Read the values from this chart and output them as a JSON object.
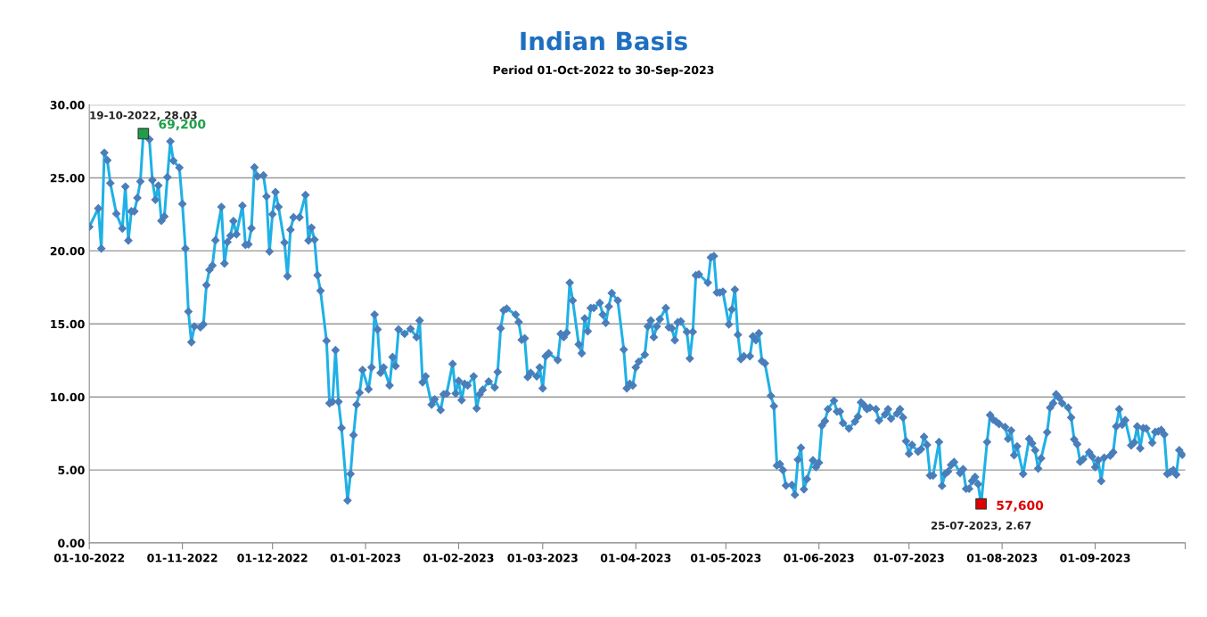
{
  "chart_data": {
    "type": "line",
    "title": "Indian Basis",
    "subtitle": "Period 01-Oct-2022 to 30-Sep-2023",
    "series": [
      {
        "color": "#1fb1e6",
        "marker": "diamond",
        "x": [
          "2022-10-01",
          "2022-10-04",
          "2022-10-05",
          "2022-10-06",
          "2022-10-07",
          "2022-10-08",
          "2022-10-10",
          "2022-10-12",
          "2022-10-13",
          "2022-10-14",
          "2022-10-15",
          "2022-10-16",
          "2022-10-17",
          "2022-10-18",
          "2022-10-19",
          "2022-10-21",
          "2022-10-22",
          "2022-10-23",
          "2022-10-24",
          "2022-10-25",
          "2022-10-26",
          "2022-10-27",
          "2022-10-28",
          "2022-10-29",
          "2022-10-31",
          "2022-11-01",
          "2022-11-02",
          "2022-11-03",
          "2022-11-04",
          "2022-11-05",
          "2022-11-07",
          "2022-11-08",
          "2022-11-09",
          "2022-11-10",
          "2022-11-11",
          "2022-11-12",
          "2022-11-14",
          "2022-11-15",
          "2022-11-16",
          "2022-11-17",
          "2022-11-18",
          "2022-11-19",
          "2022-11-21",
          "2022-11-22",
          "2022-11-23",
          "2022-11-24",
          "2022-11-25",
          "2022-11-26",
          "2022-11-28",
          "2022-11-29",
          "2022-11-30",
          "2022-12-01",
          "2022-12-02",
          "2022-12-03",
          "2022-12-05",
          "2022-12-06",
          "2022-12-07",
          "2022-12-08",
          "2022-12-10",
          "2022-12-12",
          "2022-12-13",
          "2022-12-14",
          "2022-12-15",
          "2022-12-16",
          "2022-12-17",
          "2022-12-19",
          "2022-12-20",
          "2022-12-21",
          "2022-12-22",
          "2022-12-23",
          "2022-12-24",
          "2022-12-26",
          "2022-12-27",
          "2022-12-28",
          "2022-12-29",
          "2022-12-30",
          "2022-12-31",
          "2023-01-02",
          "2023-01-03",
          "2023-01-04",
          "2023-01-05",
          "2023-01-06",
          "2023-01-07",
          "2023-01-09",
          "2023-01-10",
          "2023-01-11",
          "2023-01-12",
          "2023-01-14",
          "2023-01-16",
          "2023-01-18",
          "2023-01-19",
          "2023-01-20",
          "2023-01-21",
          "2023-01-23",
          "2023-01-24",
          "2023-01-26",
          "2023-01-27",
          "2023-01-28",
          "2023-01-30",
          "2023-01-31",
          "2023-02-01",
          "2023-02-02",
          "2023-02-03",
          "2023-02-04",
          "2023-02-06",
          "2023-02-07",
          "2023-02-08",
          "2023-02-09",
          "2023-02-11",
          "2023-02-13",
          "2023-02-14",
          "2023-02-15",
          "2023-02-16",
          "2023-02-17",
          "2023-02-20",
          "2023-02-21",
          "2023-02-22",
          "2023-02-23",
          "2023-02-24",
          "2023-02-25",
          "2023-02-27",
          "2023-02-28",
          "2023-03-01",
          "2023-03-02",
          "2023-03-03",
          "2023-03-06",
          "2023-03-07",
          "2023-03-08",
          "2023-03-09",
          "2023-03-10",
          "2023-03-11",
          "2023-03-13",
          "2023-03-14",
          "2023-03-15",
          "2023-03-16",
          "2023-03-17",
          "2023-03-18",
          "2023-03-20",
          "2023-03-21",
          "2023-03-22",
          "2023-03-23",
          "2023-03-24",
          "2023-03-26",
          "2023-03-28",
          "2023-03-29",
          "2023-03-30",
          "2023-03-31",
          "2023-04-01",
          "2023-04-02",
          "2023-04-04",
          "2023-04-05",
          "2023-04-06",
          "2023-04-07",
          "2023-04-08",
          "2023-04-09",
          "2023-04-11",
          "2023-04-12",
          "2023-04-13",
          "2023-04-14",
          "2023-04-15",
          "2023-04-16",
          "2023-04-18",
          "2023-04-19",
          "2023-04-20",
          "2023-04-21",
          "2023-04-22",
          "2023-04-25",
          "2023-04-26",
          "2023-04-27",
          "2023-04-28",
          "2023-04-29",
          "2023-04-30",
          "2023-05-02",
          "2023-05-03",
          "2023-05-04",
          "2023-05-05",
          "2023-05-06",
          "2023-05-07",
          "2023-05-09",
          "2023-05-10",
          "2023-05-11",
          "2023-05-12",
          "2023-05-13",
          "2023-05-14",
          "2023-05-16",
          "2023-05-17",
          "2023-05-18",
          "2023-05-19",
          "2023-05-20",
          "2023-05-21",
          "2023-05-23",
          "2023-05-24",
          "2023-05-25",
          "2023-05-26",
          "2023-05-27",
          "2023-05-28",
          "2023-05-30",
          "2023-05-31",
          "2023-06-01",
          "2023-06-02",
          "2023-06-03",
          "2023-06-04",
          "2023-06-06",
          "2023-06-07",
          "2023-06-08",
          "2023-06-09",
          "2023-06-11",
          "2023-06-13",
          "2023-06-14",
          "2023-06-15",
          "2023-06-16",
          "2023-06-17",
          "2023-06-18",
          "2023-06-20",
          "2023-06-21",
          "2023-06-23",
          "2023-06-24",
          "2023-06-25",
          "2023-06-27",
          "2023-06-28",
          "2023-06-29",
          "2023-06-30",
          "2023-07-01",
          "2023-07-02",
          "2023-07-04",
          "2023-07-05",
          "2023-07-06",
          "2023-07-07",
          "2023-07-08",
          "2023-07-09",
          "2023-07-11",
          "2023-07-12",
          "2023-07-13",
          "2023-07-14",
          "2023-07-15",
          "2023-07-16",
          "2023-07-18",
          "2023-07-19",
          "2023-07-20",
          "2023-07-21",
          "2023-07-22",
          "2023-07-23",
          "2023-07-24",
          "2023-07-25",
          "2023-07-27",
          "2023-07-28",
          "2023-07-29",
          "2023-07-30",
          "2023-07-31",
          "2023-08-02",
          "2023-08-03",
          "2023-08-04",
          "2023-08-05",
          "2023-08-06",
          "2023-08-08",
          "2023-08-10",
          "2023-08-11",
          "2023-08-12",
          "2023-08-13",
          "2023-08-14",
          "2023-08-16",
          "2023-08-17",
          "2023-08-18",
          "2023-08-19",
          "2023-08-20",
          "2023-08-21",
          "2023-08-23",
          "2023-08-24",
          "2023-08-25",
          "2023-08-26",
          "2023-08-27",
          "2023-08-28",
          "2023-08-30",
          "2023-08-31",
          "2023-09-01",
          "2023-09-02",
          "2023-09-03",
          "2023-09-04",
          "2023-09-06",
          "2023-09-07",
          "2023-09-08",
          "2023-09-09",
          "2023-09-10",
          "2023-09-11",
          "2023-09-13",
          "2023-09-14",
          "2023-09-15",
          "2023-09-16",
          "2023-09-17",
          "2023-09-18",
          "2023-09-20",
          "2023-09-21",
          "2023-09-22",
          "2023-09-23",
          "2023-09-24",
          "2023-09-25",
          "2023-09-26",
          "2023-09-27",
          "2023-09-28",
          "2023-09-29",
          "2023-09-30"
        ],
        "values": [
          21.65,
          22.91,
          20.16,
          26.72,
          26.21,
          24.64,
          22.55,
          21.53,
          24.4,
          20.71,
          22.71,
          22.71,
          23.63,
          24.75,
          28.03,
          27.64,
          24.85,
          23.5,
          24.48,
          22.06,
          22.36,
          25.05,
          27.5,
          26.17,
          25.7,
          23.22,
          20.16,
          15.85,
          13.75,
          14.83,
          14.77,
          14.97,
          17.66,
          18.7,
          19.0,
          20.73,
          23.01,
          19.14,
          20.61,
          21.04,
          22.04,
          21.14,
          23.1,
          20.41,
          20.45,
          21.55,
          25.72,
          25.11,
          25.17,
          23.73,
          19.96,
          22.51,
          24.03,
          23.01,
          20.57,
          18.27,
          21.45,
          22.3,
          22.3,
          23.83,
          20.71,
          21.59,
          20.77,
          18.33,
          17.27,
          13.85,
          9.57,
          9.67,
          13.2,
          9.67,
          7.88,
          2.91,
          4.73,
          7.39,
          9.47,
          10.29,
          11.85,
          10.53,
          12.02,
          15.64,
          14.62,
          11.65,
          12.02,
          10.79,
          12.73,
          12.12,
          14.62,
          14.32,
          14.66,
          14.09,
          15.23,
          11.0,
          11.41,
          9.47,
          9.84,
          9.1,
          10.18,
          10.22,
          12.26,
          10.24,
          11.1,
          9.78,
          10.9,
          10.79,
          11.41,
          9.21,
          10.18,
          10.49,
          11.06,
          10.65,
          11.71,
          14.7,
          15.93,
          16.05,
          15.64,
          15.13,
          13.91,
          14.01,
          11.36,
          11.65,
          11.41,
          12.02,
          10.59,
          12.79,
          12.99,
          12.53,
          14.32,
          14.09,
          14.4,
          17.82,
          16.6,
          13.6,
          12.99,
          15.38,
          14.5,
          16.09,
          16.09,
          16.44,
          15.64,
          15.07,
          16.19,
          17.11,
          16.6,
          13.24,
          10.59,
          10.9,
          10.79,
          12.02,
          12.42,
          12.89,
          14.83,
          15.23,
          14.09,
          14.83,
          15.32,
          16.09,
          14.77,
          14.7,
          13.89,
          15.11,
          15.17,
          14.46,
          12.63,
          14.46,
          18.33,
          18.39,
          17.82,
          19.55,
          19.65,
          17.15,
          17.15,
          17.21,
          14.97,
          15.99,
          17.35,
          14.26,
          12.59,
          12.79,
          12.79,
          14.15,
          13.89,
          14.36,
          12.46,
          12.3,
          10.08,
          9.37,
          5.3,
          5.4,
          4.99,
          3.93,
          3.97,
          3.3,
          5.7,
          6.52,
          3.67,
          4.38,
          5.66,
          5.19,
          5.5,
          8.04,
          8.35,
          9.16,
          9.74,
          9.0,
          9.0,
          8.21,
          7.84,
          8.31,
          8.66,
          9.63,
          9.43,
          9.16,
          9.27,
          9.16,
          8.39,
          8.8,
          9.16,
          8.51,
          8.86,
          9.16,
          8.59,
          6.97,
          6.11,
          6.72,
          6.25,
          6.42,
          7.27,
          6.72,
          4.62,
          4.62,
          6.92,
          3.91,
          4.73,
          4.89,
          5.34,
          5.54,
          4.79,
          5.05,
          3.71,
          3.71,
          4.24,
          4.52,
          4.03,
          2.67,
          6.92,
          8.76,
          8.45,
          8.31,
          8.15,
          7.94,
          7.13,
          7.7,
          6.01,
          6.62,
          4.73,
          7.13,
          6.82,
          6.35,
          5.09,
          5.8,
          7.58,
          9.27,
          9.57,
          10.18,
          9.94,
          9.57,
          9.27,
          8.59,
          7.09,
          6.76,
          5.56,
          5.74,
          6.21,
          5.91,
          5.19,
          5.66,
          4.24,
          5.84,
          5.97,
          6.21,
          7.98,
          9.16,
          8.1,
          8.41,
          6.68,
          6.88,
          7.98,
          6.48,
          7.86,
          7.84,
          6.86,
          7.6,
          7.64,
          7.74,
          7.43,
          4.73,
          4.85,
          4.99,
          4.68,
          6.35,
          6.04
        ]
      },
      {
        "type": "scatter",
        "color": "#1e9e48",
        "marker": "square",
        "x": [
          "2022-10-19"
        ],
        "values": [
          28.03
        ]
      },
      {
        "type": "scatter",
        "color": "#e00000",
        "marker": "square",
        "x": [
          "2023-07-25"
        ],
        "values": [
          2.67
        ]
      }
    ],
    "annotations": [
      {
        "text": "19-10-2022, 28.03",
        "x": "2022-10-19",
        "y": 28.03
      },
      {
        "text": "69,200",
        "x": "2022-10-19",
        "y": 28.03
      },
      {
        "text": "57,600",
        "x": "2023-07-25",
        "y": 2.67
      },
      {
        "text": "25-07-2023, 2.67",
        "x": "2023-07-25",
        "y": 2.67
      }
    ],
    "xlim": [
      "2022-10-01",
      "2023-10-01"
    ],
    "xticks": [
      {
        "value": "2022-10-01",
        "label": "01-10-2022"
      },
      {
        "value": "2022-11-01",
        "label": "01-11-2022"
      },
      {
        "value": "2022-12-01",
        "label": "01-12-2022"
      },
      {
        "value": "2023-01-01",
        "label": "01-01-2023"
      },
      {
        "value": "2023-02-01",
        "label": "01-02-2023"
      },
      {
        "value": "2023-03-01",
        "label": "01-03-2023"
      },
      {
        "value": "2023-04-01",
        "label": "01-04-2023"
      },
      {
        "value": "2023-05-01",
        "label": "01-05-2023"
      },
      {
        "value": "2023-06-01",
        "label": "01-06-2023"
      },
      {
        "value": "2023-07-01",
        "label": "01-07-2023"
      },
      {
        "value": "2023-08-01",
        "label": "01-08-2023"
      },
      {
        "value": "2023-09-01",
        "label": "01-09-2023"
      },
      {
        "value": "2023-10-01",
        "label": null
      }
    ],
    "ylim": [
      0,
      30
    ],
    "yticks": [
      {
        "value": 0,
        "label": "0.00"
      },
      {
        "value": 5,
        "label": "5.00"
      },
      {
        "value": 10,
        "label": "10.00"
      },
      {
        "value": 15,
        "label": "15.00"
      },
      {
        "value": 20,
        "label": "20.00"
      },
      {
        "value": 25,
        "label": "25.00"
      },
      {
        "value": 30,
        "label": "30.00"
      }
    ],
    "grid": "y",
    "line_style": "solid"
  }
}
